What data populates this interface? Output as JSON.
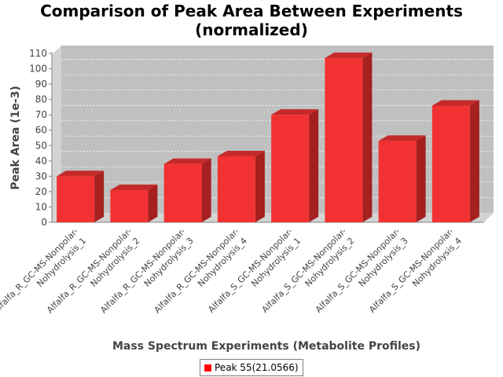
{
  "chart_data": {
    "type": "bar",
    "title_line1": "Comparison of Peak Area Between Experiments",
    "title_line2": "(normalized)",
    "xlabel": "Mass Spectrum Experiments (Metabolite Profiles)",
    "ylabel": "Peak Area (1e-3)",
    "ylim": [
      0,
      110
    ],
    "yticks": [
      0,
      10,
      20,
      30,
      40,
      50,
      60,
      70,
      80,
      90,
      100,
      110
    ],
    "grid": true,
    "legend_position": "bottom",
    "categories": [
      [
        "Alfalfa_R_GC-MS-Nonpolar-",
        "Nohydrolysis_1"
      ],
      [
        "Alfalfa_R_GC-MS-Nonpolar-",
        "Nohydrolysis_2"
      ],
      [
        "Alfalfa_R_GC-MS-Nonpolar-",
        "Nohydrolysis_3"
      ],
      [
        "Alfalfa_R_GC-MS-Nonpolar-",
        "Nohydrolysis_4"
      ],
      [
        "Alfalfa_S_GC-MS-Nonpolar-",
        "Nohydrolysis_1"
      ],
      [
        "Alfalfa_S_GC-MS-Nonpolar-",
        "Nohydrolysis_2"
      ],
      [
        "Alfalfa_S_GC-MS-Nonpolar-",
        "Nohydrolysis_3"
      ],
      [
        "Alfalfa_S_GC-MS-Nonpolar-",
        "Nohydrolysis_4"
      ]
    ],
    "series": [
      {
        "name": "Peak 55(21.0566)",
        "color": "#ff0000",
        "values": [
          30,
          21,
          38,
          43,
          70,
          107,
          53,
          76
        ]
      }
    ]
  }
}
